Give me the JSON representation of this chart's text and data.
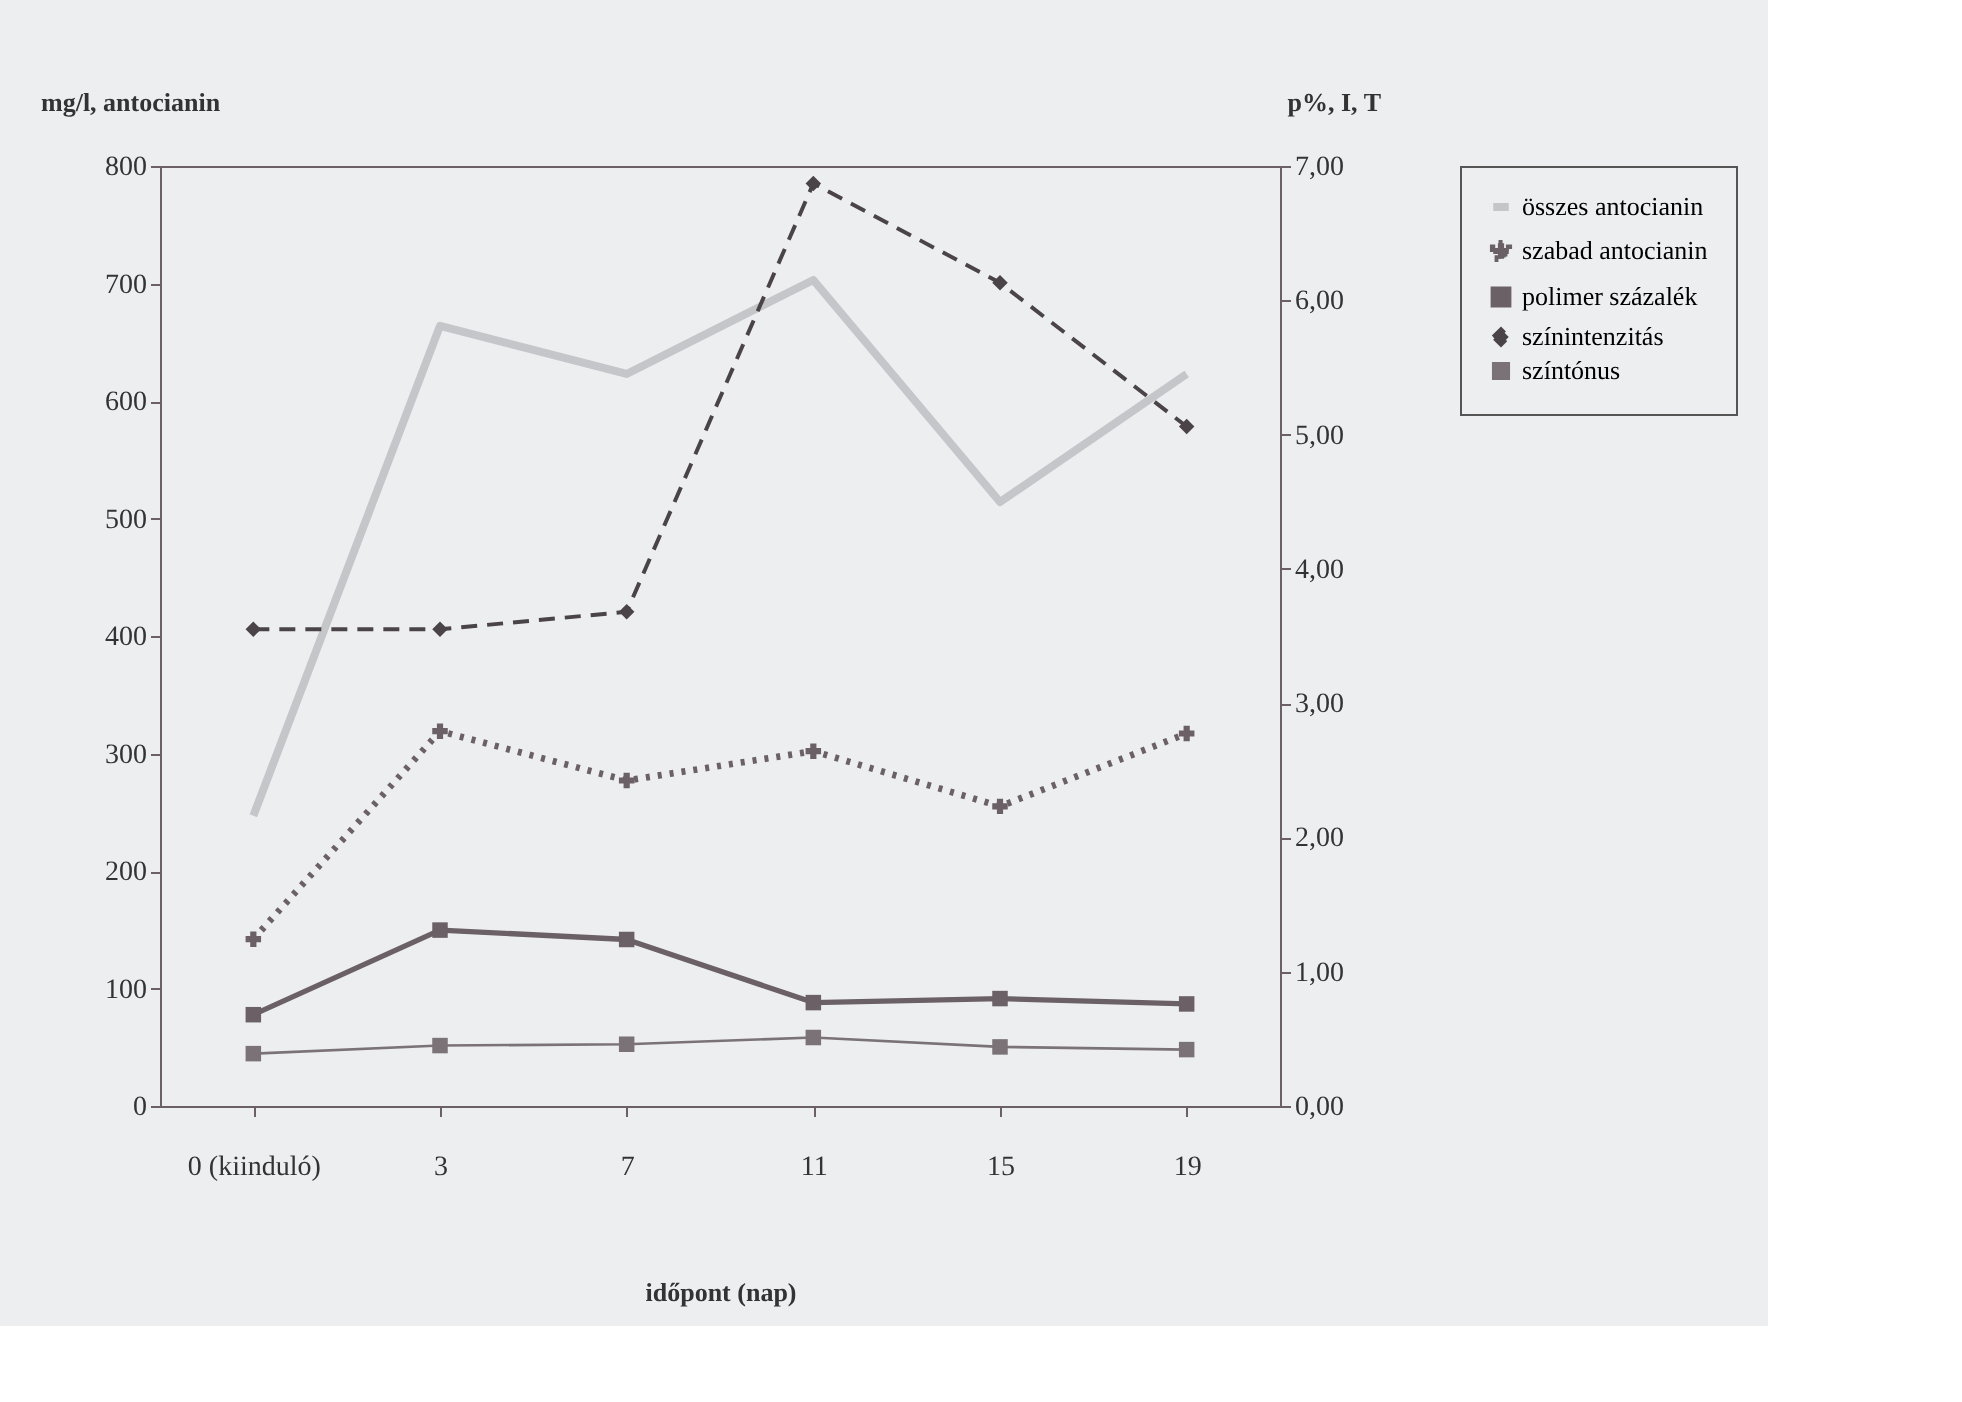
{
  "chart_data": {
    "type": "line",
    "ylabel": "mg/l, antocianin",
    "y2label": "p%, I, T",
    "xlabel": "időpont (nap)",
    "categories": [
      "0 (kiinduló)",
      "3",
      "7",
      "11",
      "15",
      "19"
    ],
    "ylim": [
      0,
      800
    ],
    "yticks": [
      0,
      100,
      200,
      300,
      400,
      500,
      600,
      700,
      800
    ],
    "y2lim": [
      0,
      7
    ],
    "y2ticks": [
      {
        "value": 0,
        "label": "0,00"
      },
      {
        "value": 1,
        "label": "1,00"
      },
      {
        "value": 2,
        "label": "2,00"
      },
      {
        "value": 3,
        "label": "3,00"
      },
      {
        "value": 4,
        "label": "4,00"
      },
      {
        "value": 5,
        "label": "5,00"
      },
      {
        "value": 6,
        "label": "6,00"
      },
      {
        "value": 7,
        "label": "7,00"
      }
    ],
    "grid": false,
    "legend": "right",
    "series": [
      {
        "name": "összes antocianin",
        "color": "#c4c6c9",
        "marker": "none",
        "line_style": "solid",
        "values": [
          247,
          664,
          623,
          703,
          514,
          623
        ]
      },
      {
        "name": "szabad antocianin",
        "color": "#6a6066",
        "marker": "cross",
        "line_style": "dotted",
        "values": [
          142,
          319,
          277,
          302,
          255,
          317
        ]
      },
      {
        "name": "polimer százalék",
        "color": "#6a6066",
        "marker": "square",
        "line_style": "solid",
        "axis": "y2",
        "values": [
          0.68,
          1.31,
          1.24,
          0.77,
          0.8,
          0.76
        ]
      },
      {
        "name": "színintenzitás",
        "color": "#4a4448",
        "marker": "diamond",
        "line_style": "dashed",
        "axis": "y2",
        "values": [
          3.55,
          3.55,
          3.68,
          6.87,
          6.13,
          5.06
        ]
      },
      {
        "name": "színtónus",
        "color": "#7a7277",
        "marker": "square",
        "line_style": "solid",
        "axis": "y2",
        "values": [
          0.39,
          0.45,
          0.46,
          0.51,
          0.44,
          0.42
        ]
      }
    ]
  }
}
